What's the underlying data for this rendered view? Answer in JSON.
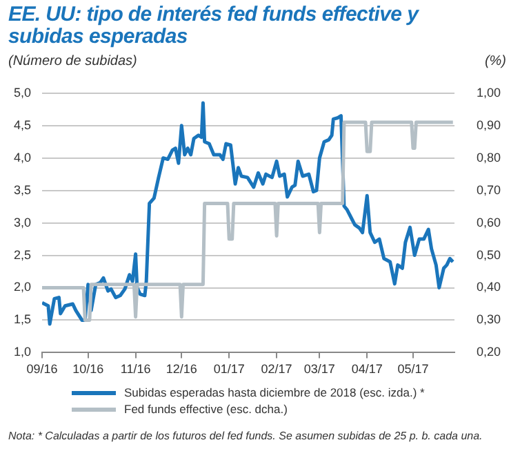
{
  "chart_data": {
    "type": "line",
    "title": "EE. UU: tipo de interés fed funds effective y subidas esperadas",
    "ylabel": "(Número de subidas)",
    "y2label": "(%)",
    "annotations": [
      "Nota: * Calculadas a partir de los futuros del fed funds. Se asumen subidas de 25 p. b. cada una."
    ],
    "xlim": [
      "2016-09-01",
      "2017-05-28"
    ],
    "xticks": [
      {
        "value": "2016-09-01",
        "label": "09/16"
      },
      {
        "value": "2016-10-01",
        "label": "10/16"
      },
      {
        "value": "2016-11-01",
        "label": "11/16"
      },
      {
        "value": "2016-12-01",
        "label": "12/16"
      },
      {
        "value": "2017-01-01",
        "label": "01/17"
      },
      {
        "value": "2017-02-01",
        "label": "02/17"
      },
      {
        "value": "2017-03-01",
        "label": "03/17"
      },
      {
        "value": "2017-04-01",
        "label": "04/17"
      },
      {
        "value": "2017-05-01",
        "label": "05/17"
      }
    ],
    "ylim": [
      1,
      5
    ],
    "yticks": [
      {
        "value": 1,
        "label": "1,0"
      },
      {
        "value": 1.5,
        "label": "1,5"
      },
      {
        "value": 2,
        "label": "2,0"
      },
      {
        "value": 2.5,
        "label": "2,5"
      },
      {
        "value": 3,
        "label": "3,0"
      },
      {
        "value": 3.5,
        "label": "3,5"
      },
      {
        "value": 4,
        "label": "4,0"
      },
      {
        "value": 4.5,
        "label": "4,5"
      },
      {
        "value": 5,
        "label": "5,0"
      }
    ],
    "y2lim": [
      0.2,
      1
    ],
    "y2ticks": [
      {
        "value": 0.2,
        "label": "0,20"
      },
      {
        "value": 0.3,
        "label": "0,30"
      },
      {
        "value": 0.4,
        "label": "0,40"
      },
      {
        "value": 0.5,
        "label": "0,50"
      },
      {
        "value": 0.6,
        "label": "0,60"
      },
      {
        "value": 0.7,
        "label": "0,70"
      },
      {
        "value": 0.8,
        "label": "0,80"
      },
      {
        "value": 0.9,
        "label": "0,90"
      },
      {
        "value": 1,
        "label": "1,00"
      }
    ],
    "grid": "y",
    "legend": "bottom",
    "series": [
      {
        "name": "Subidas esperadas hasta diciembre de 2018 (esc. izda.) *",
        "color": "#1a75bb",
        "x": [
          "2016-09-01",
          "2016-09-05",
          "2016-09-06",
          "2016-09-09",
          "2016-09-12",
          "2016-09-13",
          "2016-09-16",
          "2016-09-21",
          "2016-09-23",
          "2016-09-27",
          "2016-09-29",
          "2016-10-01",
          "2016-10-03",
          "2016-10-06",
          "2016-10-09",
          "2016-10-11",
          "2016-10-14",
          "2016-10-16",
          "2016-10-19",
          "2016-10-22",
          "2016-10-25",
          "2016-10-28",
          "2016-10-30",
          "2016-11-01",
          "2016-11-02",
          "2016-11-04",
          "2016-11-07",
          "2016-11-08",
          "2016-11-10",
          "2016-11-13",
          "2016-11-16",
          "2016-11-18",
          "2016-11-19",
          "2016-11-22",
          "2016-11-25",
          "2016-11-27",
          "2016-11-29",
          "2016-12-01",
          "2016-12-03",
          "2016-12-05",
          "2016-12-07",
          "2016-12-09",
          "2016-12-12",
          "2016-12-14",
          "2016-12-15",
          "2016-12-16",
          "2016-12-19",
          "2016-12-22",
          "2016-12-26",
          "2016-12-28",
          "2016-12-30",
          "2017-01-02",
          "2017-01-05",
          "2017-01-07",
          "2017-01-09",
          "2017-01-13",
          "2017-01-17",
          "2017-01-20",
          "2017-01-23",
          "2017-01-25",
          "2017-01-29",
          "2017-02-01",
          "2017-02-03",
          "2017-02-06",
          "2017-02-08",
          "2017-02-11",
          "2017-02-13",
          "2017-02-15",
          "2017-02-18",
          "2017-02-22",
          "2017-02-25",
          "2017-02-27",
          "2017-03-01",
          "2017-03-04",
          "2017-03-07",
          "2017-03-09",
          "2017-03-10",
          "2017-03-13",
          "2017-03-15",
          "2017-03-17",
          "2017-03-19",
          "2017-03-24",
          "2017-03-27",
          "2017-03-29",
          "2017-04-01",
          "2017-04-03",
          "2017-04-06",
          "2017-04-09",
          "2017-04-12",
          "2017-04-16",
          "2017-04-19",
          "2017-04-21",
          "2017-04-24",
          "2017-04-26",
          "2017-04-29",
          "2017-05-02",
          "2017-05-05",
          "2017-05-08",
          "2017-05-11",
          "2017-05-13",
          "2017-05-16",
          "2017-05-18",
          "2017-05-21",
          "2017-05-23",
          "2017-05-25",
          "2017-05-27"
        ],
        "values": [
          1.77,
          1.72,
          1.44,
          1.83,
          1.85,
          1.6,
          1.72,
          1.75,
          1.65,
          1.5,
          1.5,
          2.05,
          1.65,
          2.05,
          2.08,
          2.15,
          1.95,
          1.98,
          1.85,
          1.88,
          1.98,
          2.2,
          2.1,
          2.52,
          2.0,
          1.9,
          1.88,
          2.1,
          3.3,
          3.38,
          3.7,
          3.9,
          4.0,
          3.98,
          4.12,
          4.15,
          3.92,
          4.5,
          4.05,
          4.15,
          4.05,
          4.3,
          4.35,
          4.32,
          4.85,
          4.25,
          4.22,
          4.05,
          4.05,
          3.98,
          4.22,
          4.2,
          3.6,
          3.85,
          3.72,
          3.7,
          3.55,
          3.77,
          3.6,
          3.75,
          3.7,
          3.95,
          3.72,
          3.75,
          3.4,
          3.55,
          3.58,
          3.95,
          3.72,
          3.75,
          3.48,
          3.5,
          4.0,
          4.25,
          4.28,
          4.35,
          4.6,
          4.62,
          4.65,
          3.26,
          3.2,
          2.97,
          2.92,
          2.85,
          3.42,
          2.85,
          2.7,
          2.75,
          2.45,
          2.4,
          2.06,
          2.35,
          2.3,
          2.7,
          2.93,
          2.5,
          2.75,
          2.75,
          2.9,
          2.6,
          2.35,
          2.0,
          2.3,
          2.35,
          2.45,
          2.4
        ]
      },
      {
        "name": "Fed funds effective (esc. dcha.)",
        "color": "#b4bfc6",
        "axis": "y2",
        "x": [
          "2016-09-01",
          "2016-09-28",
          "2016-09-29",
          "2016-10-02",
          "2016-10-03",
          "2016-10-31",
          "2016-11-01",
          "2016-11-02",
          "2016-11-30",
          "2016-12-01",
          "2016-12-02",
          "2016-12-15",
          "2016-12-16",
          "2016-12-31",
          "2017-01-01",
          "2017-01-03",
          "2017-01-04",
          "2017-01-31",
          "2017-02-01",
          "2017-02-02",
          "2017-02-28",
          "2017-03-01",
          "2017-03-02",
          "2017-03-16",
          "2017-03-17",
          "2017-03-31",
          "2017-04-01",
          "2017-04-03",
          "2017-04-04",
          "2017-04-30",
          "2017-05-01",
          "2017-05-02",
          "2017-05-03",
          "2017-05-27"
        ],
        "values": [
          0.4,
          0.4,
          0.3,
          0.3,
          0.41,
          0.41,
          0.31,
          0.41,
          0.41,
          0.31,
          0.41,
          0.41,
          0.66,
          0.66,
          0.55,
          0.55,
          0.66,
          0.66,
          0.56,
          0.66,
          0.66,
          0.57,
          0.66,
          0.66,
          0.91,
          0.91,
          0.82,
          0.82,
          0.91,
          0.91,
          0.83,
          0.83,
          0.91,
          0.91
        ]
      }
    ]
  }
}
